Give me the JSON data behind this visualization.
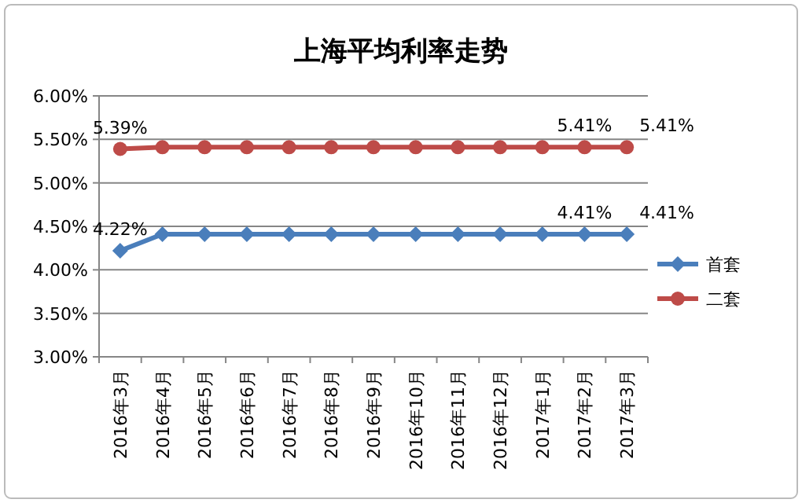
{
  "chart_data": {
    "type": "line",
    "title": "上海平均利率走势",
    "categories": [
      "2016年3月",
      "2016年4月",
      "2016年5月",
      "2016年6月",
      "2016年7月",
      "2016年8月",
      "2016年9月",
      "2016年10月",
      "2016年11月",
      "2016年12月",
      "2017年1月",
      "2017年2月",
      "2017年3月"
    ],
    "series": [
      {
        "name": "首套",
        "color": "#4a7ebb",
        "marker": "diamond",
        "values": [
          4.22,
          4.41,
          4.41,
          4.41,
          4.41,
          4.41,
          4.41,
          4.41,
          4.41,
          4.41,
          4.41,
          4.41,
          4.41
        ],
        "value_labels": [
          "4.22%",
          null,
          null,
          null,
          null,
          null,
          null,
          null,
          null,
          null,
          null,
          "4.41%",
          "4.41%"
        ]
      },
      {
        "name": "二套",
        "color": "#be4b48",
        "marker": "circle",
        "values": [
          5.39,
          5.41,
          5.41,
          5.41,
          5.41,
          5.41,
          5.41,
          5.41,
          5.41,
          5.41,
          5.41,
          5.41,
          5.41
        ],
        "value_labels": [
          "5.39%",
          null,
          null,
          null,
          null,
          null,
          null,
          null,
          null,
          null,
          null,
          "5.41%",
          "5.41%"
        ]
      }
    ],
    "ylim": [
      3,
      6
    ],
    "yticks": [
      {
        "value": 3,
        "label": "3.00%"
      },
      {
        "value": 3.5,
        "label": "3.50%"
      },
      {
        "value": 4,
        "label": "4.00%"
      },
      {
        "value": 4.5,
        "label": "4.50%"
      },
      {
        "value": 5,
        "label": "5.00%"
      },
      {
        "value": 5.5,
        "label": "5.50%"
      },
      {
        "value": 6,
        "label": "6.00%"
      }
    ],
    "grid": "y",
    "legend": "right",
    "line_style": "solid"
  }
}
